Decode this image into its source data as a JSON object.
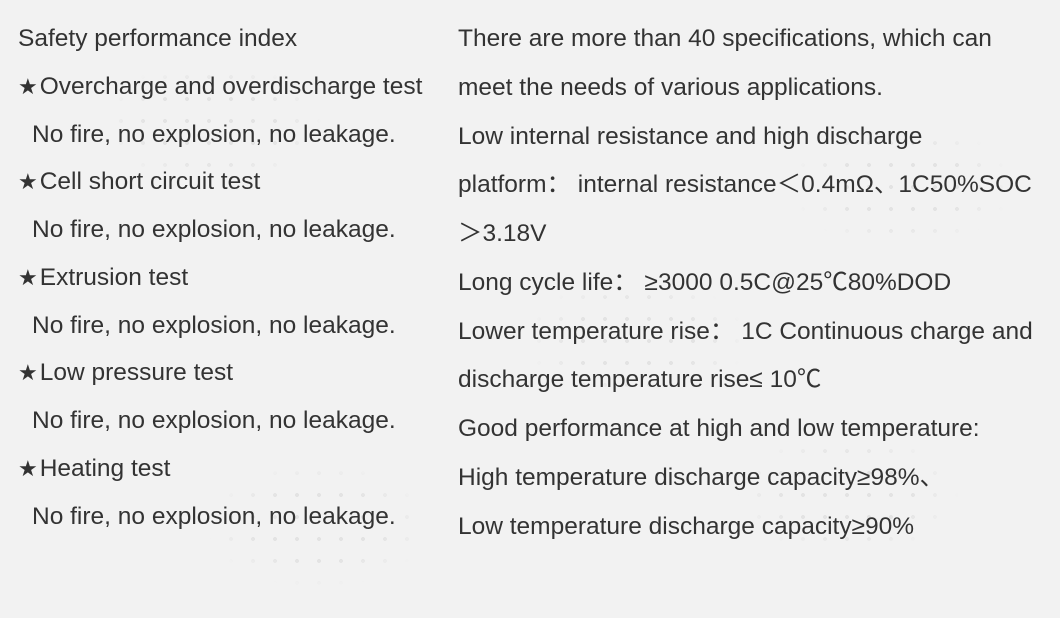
{
  "style": {
    "background_color": "#f2f2f2",
    "text_color": "#333333",
    "font_family": "Microsoft YaHei / Segoe UI",
    "font_size_pt": 18,
    "line_height": 1.95,
    "star_glyph": "★",
    "watermark_dot_color": "rgba(0,0,0,0.06)"
  },
  "left": {
    "heading": "Safety performance index",
    "tests": [
      {
        "title": "Overcharge and overdischarge test",
        "result": "No fire, no explosion, no leakage."
      },
      {
        "title": "Cell short circuit test",
        "result": "No fire, no explosion, no leakage."
      },
      {
        "title": "Extrusion test",
        "result": "No fire, no explosion, no leakage."
      },
      {
        "title": "Low pressure test",
        "result": "No fire, no explosion, no leakage."
      },
      {
        "title": "Heating test",
        "result": "No fire, no explosion, no leakage."
      }
    ]
  },
  "right": {
    "lines": [
      "There are more than 40 specifications, which can meet the needs of various applications.",
      "Low internal resistance and high discharge platform： internal resistance＜0.4mΩ、1C50%SOC＞3.18V",
      "Long cycle life： ≥3000 0.5C@25℃80%DOD",
      "Lower temperature rise： 1C Continuous charge and discharge temperature rise≤ 10℃",
      "Good performance at high and low temperature:",
      "High temperature discharge capacity≥98%、",
      "Low temperature discharge capacity≥90%"
    ]
  }
}
